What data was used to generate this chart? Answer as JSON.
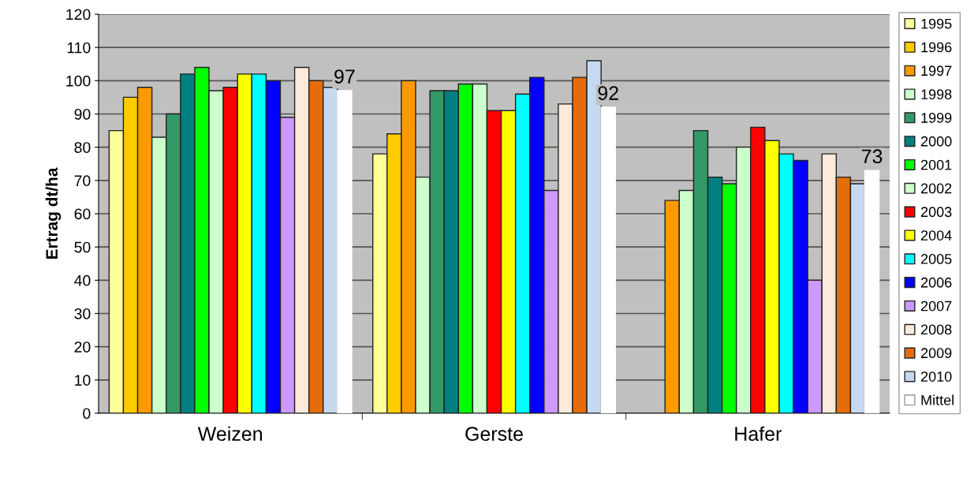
{
  "chart_data": {
    "type": "bar",
    "ylabel": "Ertrag dt/ha",
    "categories": [
      "Weizen",
      "Gerste",
      "Hafer"
    ],
    "ylim": [
      0,
      120
    ],
    "yticks": [
      0,
      10,
      20,
      30,
      40,
      50,
      60,
      70,
      80,
      90,
      100,
      110,
      120
    ],
    "grid": "y",
    "legend": "right",
    "series": [
      {
        "name": "1995",
        "color": "#ffff99",
        "values": [
          85,
          78,
          null
        ]
      },
      {
        "name": "1996",
        "color": "#ffcc00",
        "values": [
          95,
          84,
          null
        ]
      },
      {
        "name": "1997",
        "color": "#ff9900",
        "values": [
          98,
          100,
          64
        ]
      },
      {
        "name": "1998",
        "color": "#ccffcc",
        "values": [
          83,
          71,
          67
        ]
      },
      {
        "name": "1999",
        "color": "#339966",
        "values": [
          90,
          97,
          85
        ]
      },
      {
        "name": "2000",
        "color": "#008080",
        "values": [
          102,
          97,
          71
        ]
      },
      {
        "name": "2001",
        "color": "#00ff00",
        "values": [
          104,
          99,
          69
        ]
      },
      {
        "name": "2002",
        "color": "#ccffcc",
        "values": [
          97,
          99,
          80
        ]
      },
      {
        "name": "2003",
        "color": "#ff0000",
        "values": [
          98,
          91,
          86
        ]
      },
      {
        "name": "2004",
        "color": "#ffff00",
        "values": [
          102,
          91,
          82
        ]
      },
      {
        "name": "2005",
        "color": "#00ffff",
        "values": [
          102,
          96,
          78
        ]
      },
      {
        "name": "2006",
        "color": "#0000ff",
        "values": [
          100,
          101,
          76
        ]
      },
      {
        "name": "2007",
        "color": "#cc99ff",
        "values": [
          89,
          67,
          40
        ]
      },
      {
        "name": "2008",
        "color": "#fdeada",
        "values": [
          104,
          93,
          78
        ]
      },
      {
        "name": "2009",
        "color": "#e46c0a",
        "values": [
          100,
          101,
          71
        ]
      },
      {
        "name": "2010",
        "color": "#c6d9f1",
        "values": [
          98,
          106,
          69
        ]
      },
      {
        "name": "Mittel",
        "color": "#ffffff",
        "values": [
          97,
          92,
          73
        ],
        "value_labels": [
          "97",
          "92",
          "73"
        ]
      }
    ]
  }
}
